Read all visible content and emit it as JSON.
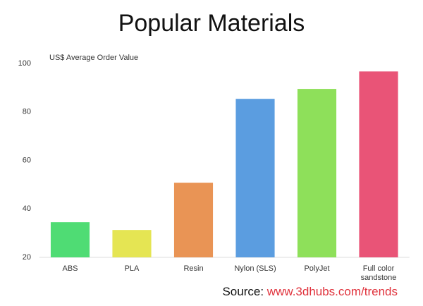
{
  "chart_data": {
    "type": "bar",
    "title": "Popular Materials",
    "y_label": "US$ Average Order Value",
    "categories": [
      "ABS",
      "PLA",
      "Resin",
      "Nylon (SLS)",
      "PolyJet",
      "Full color sandstone"
    ],
    "values": [
      34.5,
      31.3,
      50.8,
      85.4,
      89.5,
      96.7
    ],
    "colors": [
      "#4fdc74",
      "#e5e553",
      "#e99455",
      "#5b9de0",
      "#8ee05a",
      "#e95477"
    ],
    "ylim": [
      20,
      100
    ],
    "yticks": [
      20,
      40,
      60,
      80,
      100
    ],
    "grid": false,
    "source": {
      "label": "Source:",
      "url": "www.3dhubs.com/trends"
    }
  }
}
